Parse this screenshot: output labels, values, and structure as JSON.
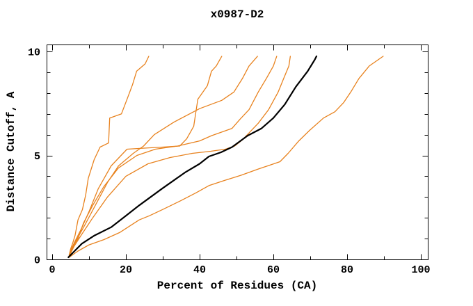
{
  "chart_data": {
    "type": "line",
    "title": "x0987-D2",
    "xlabel": "Percent of Residues (CA)",
    "ylabel": "Distance Cutoff, A",
    "xlim": [
      -1.5,
      102
    ],
    "ylim": [
      0,
      10.35
    ],
    "grid": false,
    "legend": "none",
    "x_axis": {
      "major_ticks": [
        0,
        20,
        40,
        60,
        80,
        100
      ],
      "major_tick_labels": [
        "0",
        "20",
        "40",
        "60",
        "80",
        "100"
      ],
      "minor_ticks": [
        10,
        30,
        50,
        70,
        90
      ]
    },
    "y_axis": {
      "major_ticks": [
        0,
        5,
        10
      ],
      "major_tick_labels": [
        "0",
        "5",
        "10"
      ],
      "minor_ticks": [
        1,
        2,
        3,
        4,
        6,
        7,
        8,
        9
      ]
    },
    "colors": {
      "model_curve": "#E8821E",
      "reference_curve": "#000000",
      "axis": "#000000",
      "background": "#ffffff"
    },
    "series": [
      {
        "name": "orange-curve-1",
        "color": "#E8821E",
        "width": 1.3,
        "points": [
          [
            4.6,
            0.2
          ],
          [
            5.0,
            0.5
          ],
          [
            5.6,
            0.8
          ],
          [
            6.2,
            1.15
          ],
          [
            7,
            1.9
          ],
          [
            8.2,
            2.4
          ],
          [
            9.1,
            3.1
          ],
          [
            9.8,
            3.9
          ],
          [
            11.4,
            4.8
          ],
          [
            13,
            5.4
          ],
          [
            15.3,
            5.6
          ],
          [
            15.6,
            6.8
          ],
          [
            18.8,
            7.0
          ],
          [
            20.3,
            7.7
          ],
          [
            21.8,
            8.4
          ],
          [
            22.9,
            9.05
          ],
          [
            25.2,
            9.4
          ],
          [
            26.2,
            9.77
          ]
        ]
      },
      {
        "name": "orange-curve-2",
        "color": "#E8821E",
        "width": 1.3,
        "points": [
          [
            4.6,
            0.15
          ],
          [
            5.2,
            0.5
          ],
          [
            6,
            0.8
          ],
          [
            8,
            1.5
          ],
          [
            10,
            2.3
          ],
          [
            12.5,
            3.4
          ],
          [
            16,
            4.5
          ],
          [
            20.3,
            5.3
          ],
          [
            25,
            5.35
          ],
          [
            30,
            5.4
          ],
          [
            34.6,
            5.45
          ],
          [
            36.5,
            5.8
          ],
          [
            38.4,
            6.4
          ],
          [
            38.9,
            7.0
          ],
          [
            39.5,
            7.7
          ],
          [
            42.1,
            8.35
          ],
          [
            43.2,
            9.05
          ],
          [
            44.5,
            9.3
          ],
          [
            46,
            9.77
          ]
        ]
      },
      {
        "name": "orange-curve-3",
        "color": "#E8821E",
        "width": 1.3,
        "points": [
          [
            4.6,
            0.2
          ],
          [
            5.5,
            0.55
          ],
          [
            6.5,
            0.9
          ],
          [
            9,
            1.7
          ],
          [
            12,
            2.7
          ],
          [
            15,
            3.7
          ],
          [
            18,
            4.5
          ],
          [
            22,
            5.1
          ],
          [
            24.8,
            5.45
          ],
          [
            27.7,
            6.0
          ],
          [
            33,
            6.6
          ],
          [
            40,
            7.25
          ],
          [
            46,
            7.65
          ],
          [
            49.3,
            8.05
          ],
          [
            51.6,
            8.7
          ],
          [
            53.4,
            9.3
          ],
          [
            55.7,
            9.77
          ]
        ]
      },
      {
        "name": "orange-curve-4",
        "color": "#E8821E",
        "width": 1.3,
        "points": [
          [
            4.6,
            0.2
          ],
          [
            5.5,
            0.6
          ],
          [
            7,
            1.0
          ],
          [
            8.5,
            1.75
          ],
          [
            11,
            2.6
          ],
          [
            14,
            3.5
          ],
          [
            18,
            4.4
          ],
          [
            23,
            5.0
          ],
          [
            28,
            5.3
          ],
          [
            34,
            5.45
          ],
          [
            40,
            5.7
          ],
          [
            43.2,
            5.95
          ],
          [
            48.8,
            6.3
          ],
          [
            51,
            6.75
          ],
          [
            53.4,
            7.2
          ],
          [
            55.9,
            8.05
          ],
          [
            58.1,
            8.7
          ],
          [
            60,
            9.3
          ],
          [
            60.9,
            9.77
          ]
        ]
      },
      {
        "name": "orange-curve-5",
        "color": "#E8821E",
        "width": 1.3,
        "points": [
          [
            4.6,
            0.15
          ],
          [
            6,
            0.65
          ],
          [
            8,
            1.2
          ],
          [
            11,
            2.0
          ],
          [
            15,
            3.0
          ],
          [
            20,
            4.0
          ],
          [
            26,
            4.6
          ],
          [
            32,
            4.9
          ],
          [
            38,
            5.1
          ],
          [
            43,
            5.2
          ],
          [
            47,
            5.3
          ],
          [
            49.5,
            5.45
          ],
          [
            51.6,
            5.75
          ],
          [
            55.9,
            6.55
          ],
          [
            58.7,
            7.2
          ],
          [
            61.3,
            8.05
          ],
          [
            62.8,
            8.7
          ],
          [
            64.2,
            9.3
          ],
          [
            64.6,
            9.77
          ]
        ]
      },
      {
        "name": "orange-curve-6",
        "color": "#E8821E",
        "width": 1.3,
        "points": [
          [
            4.6,
            0.1
          ],
          [
            7,
            0.4
          ],
          [
            10,
            0.7
          ],
          [
            14,
            0.95
          ],
          [
            18.4,
            1.3
          ],
          [
            23.6,
            1.9
          ],
          [
            26.4,
            2.1
          ],
          [
            30,
            2.4
          ],
          [
            34.6,
            2.8
          ],
          [
            39,
            3.2
          ],
          [
            42.5,
            3.55
          ],
          [
            46.8,
            3.8
          ],
          [
            51.3,
            4.05
          ],
          [
            56,
            4.35
          ],
          [
            61.8,
            4.7
          ],
          [
            64,
            5.1
          ],
          [
            66.9,
            5.7
          ],
          [
            69.8,
            6.2
          ],
          [
            73.6,
            6.8
          ],
          [
            76.7,
            7.1
          ],
          [
            79.1,
            7.55
          ],
          [
            81,
            8.05
          ],
          [
            83.2,
            8.7
          ],
          [
            86,
            9.3
          ],
          [
            88,
            9.55
          ],
          [
            89.8,
            9.77
          ]
        ]
      },
      {
        "name": "black-curve",
        "color": "#000000",
        "width": 2.2,
        "points": [
          [
            4.4,
            0.1
          ],
          [
            5.5,
            0.3
          ],
          [
            8,
            0.75
          ],
          [
            11.5,
            1.15
          ],
          [
            16,
            1.55
          ],
          [
            20,
            2.1
          ],
          [
            23.6,
            2.6
          ],
          [
            29.8,
            3.4
          ],
          [
            36.2,
            4.2
          ],
          [
            40,
            4.6
          ],
          [
            42.5,
            4.95
          ],
          [
            45.8,
            5.15
          ],
          [
            48.8,
            5.4
          ],
          [
            53,
            5.95
          ],
          [
            56.8,
            6.3
          ],
          [
            60,
            6.8
          ],
          [
            63.1,
            7.45
          ],
          [
            66.1,
            8.3
          ],
          [
            69.3,
            9.05
          ],
          [
            71.2,
            9.6
          ],
          [
            71.7,
            9.77
          ]
        ]
      }
    ]
  }
}
